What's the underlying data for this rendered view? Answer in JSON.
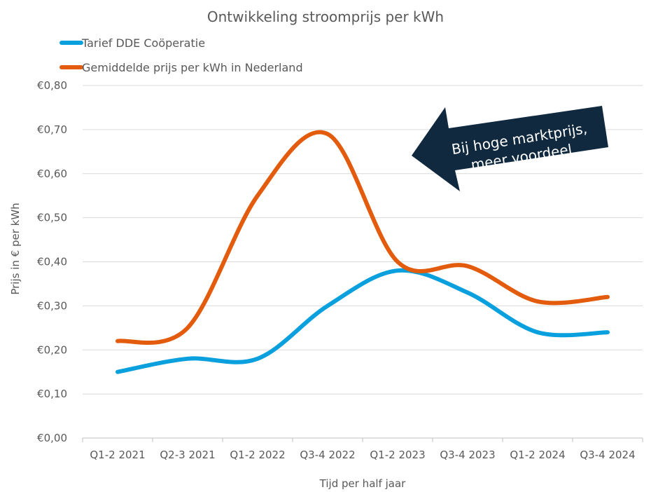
{
  "chart_data": {
    "type": "line",
    "title": "Ontwikkeling stroomprijs per kWh",
    "xlabel": "Tijd per half jaar",
    "ylabel": "Prijs in € per kWh",
    "categories": [
      "Q1-2 2021",
      "Q2-3 2021",
      "Q1-2 2022",
      "Q3-4 2022",
      "Q1-2 2023",
      "Q3-4 2023",
      "Q1-2 2024",
      "Q3-4 2024"
    ],
    "y_ticks": [
      "€0,00",
      "€0,10",
      "€0,20",
      "€0,30",
      "€0,40",
      "€0,50",
      "€0,60",
      "€0,70",
      "€0,80"
    ],
    "ylim": [
      0,
      0.8
    ],
    "grid": true,
    "legend_position": "top-left",
    "smooth": true,
    "series": [
      {
        "name": "Tarief DDE Coöperatie",
        "color": "#0aa0dd",
        "values": [
          0.15,
          0.18,
          0.18,
          0.3,
          0.38,
          0.33,
          0.24,
          0.24
        ]
      },
      {
        "name": "Gemiddelde prijs per kWh in Nederland",
        "color": "#e35b0c",
        "values": [
          0.22,
          0.25,
          0.55,
          0.69,
          0.4,
          0.39,
          0.31,
          0.32
        ]
      }
    ],
    "annotation": {
      "lines": [
        "Bij hoge marktprijs,",
        "meer voordeel"
      ],
      "background": "#10293f"
    }
  }
}
